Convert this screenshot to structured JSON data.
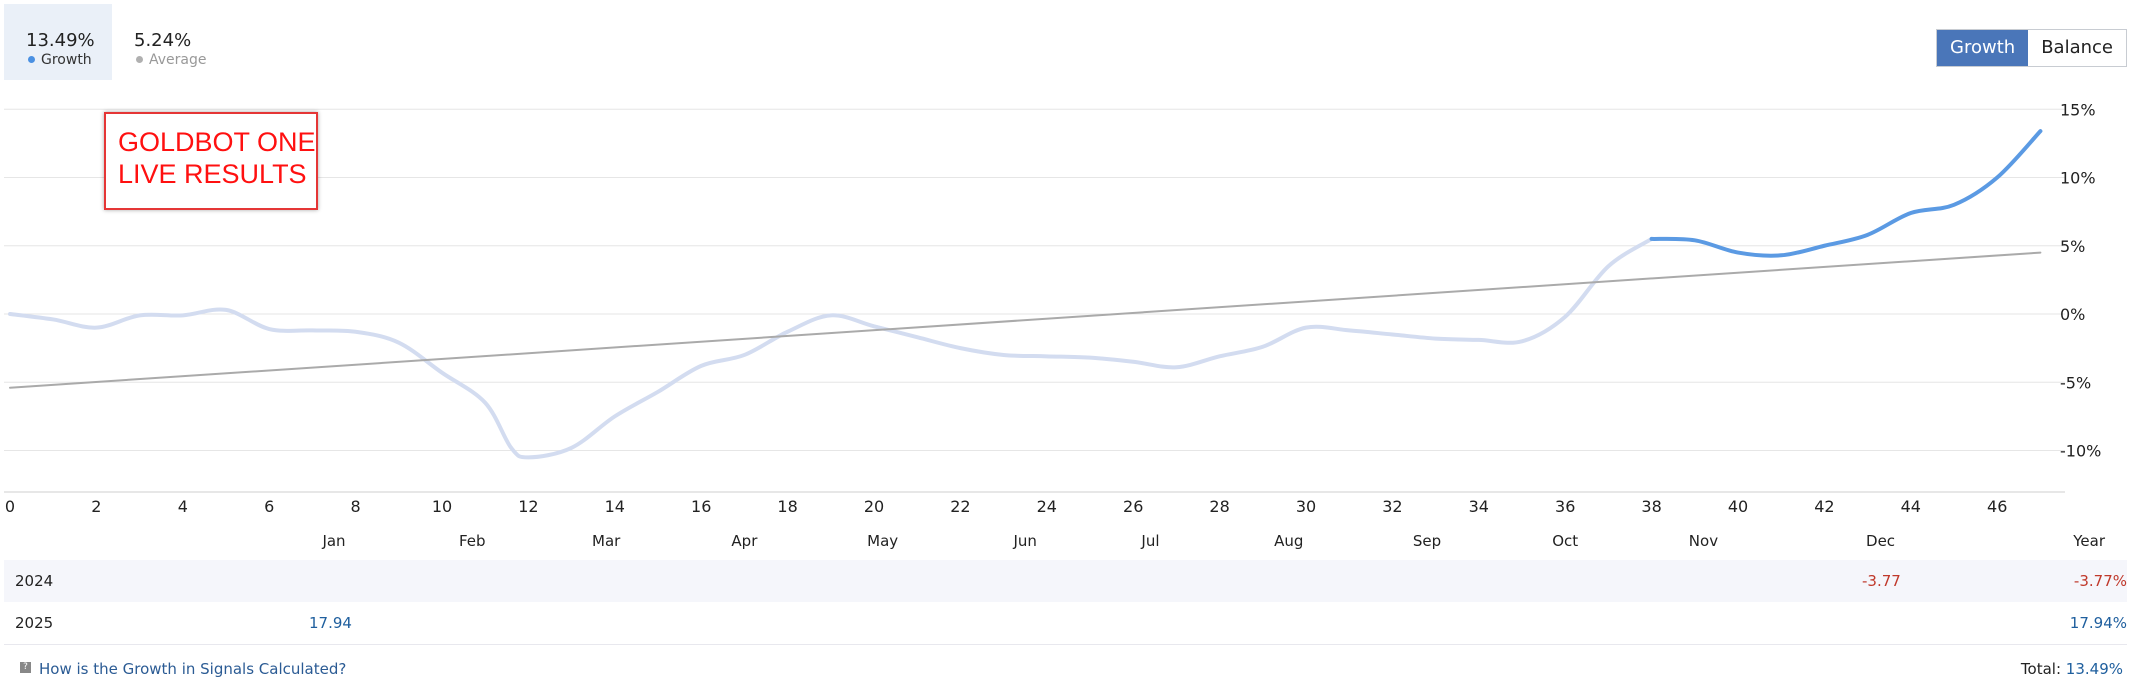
{
  "stats": {
    "growth": {
      "value": "13.49%",
      "label": "Growth",
      "dot_color": "#4a90e2"
    },
    "average": {
      "value": "5.24%",
      "label": "Average",
      "dot_color": "#b0b0b0"
    }
  },
  "toggle": {
    "growth_label": "Growth",
    "balance_label": "Balance",
    "active": "Growth"
  },
  "overlay": {
    "line1": "GOLDBOT ONE",
    "line2": "LIVE RESULTS"
  },
  "chart_data": {
    "type": "line",
    "x_ticks": [
      0,
      2,
      4,
      6,
      8,
      10,
      12,
      14,
      16,
      18,
      20,
      22,
      24,
      26,
      28,
      30,
      32,
      34,
      36,
      38,
      40,
      42,
      44,
      46
    ],
    "y_ticks": [
      15,
      10,
      5,
      0,
      -5,
      -10
    ],
    "y_tick_labels": [
      "15%",
      "10%",
      "5%",
      "0%",
      "-5%",
      "-10%"
    ],
    "ylim": [
      -12.8,
      15
    ],
    "xlim": [
      0,
      47.6
    ],
    "month_labels": [
      {
        "label": "Jan",
        "x": 7.5
      },
      {
        "label": "Feb",
        "x": 10.7
      },
      {
        "label": "Mar",
        "x": 13.8
      },
      {
        "label": "Apr",
        "x": 17.0
      },
      {
        "label": "May",
        "x": 20.2
      },
      {
        "label": "Jun",
        "x": 23.5
      },
      {
        "label": "Jul",
        "x": 26.4
      },
      {
        "label": "Aug",
        "x": 29.6
      },
      {
        "label": "Sep",
        "x": 32.8
      },
      {
        "label": "Oct",
        "x": 36.0
      },
      {
        "label": "Nov",
        "x": 39.2
      },
      {
        "label": "Dec",
        "x": 43.3
      }
    ],
    "year_label": "Year",
    "grid": true,
    "colors": {
      "past_growth": "#d3dcf0",
      "growth": "#5b9ae3",
      "average": "#aaaaaa",
      "grid": "#e6e6e6"
    },
    "series": [
      {
        "name": "Growth",
        "color": "#d3dcf0",
        "points": [
          [
            0,
            0
          ],
          [
            1,
            -0.4
          ],
          [
            2,
            -1
          ],
          [
            3,
            -0.1
          ],
          [
            4,
            -0.1
          ],
          [
            5,
            0.3
          ],
          [
            6,
            -1.1
          ],
          [
            7,
            -1.2
          ],
          [
            8,
            -1.3
          ],
          [
            9,
            -2.1
          ],
          [
            10,
            -4.3
          ],
          [
            11,
            -6.5
          ],
          [
            11.6,
            -9.8
          ],
          [
            12,
            -10.5
          ],
          [
            13,
            -9.8
          ],
          [
            14,
            -7.5
          ],
          [
            15,
            -5.7
          ],
          [
            16,
            -3.8
          ],
          [
            17,
            -3
          ],
          [
            18,
            -1.3
          ],
          [
            19,
            -0.1
          ],
          [
            20,
            -0.9
          ],
          [
            21,
            -1.7
          ],
          [
            22,
            -2.5
          ],
          [
            23,
            -3.0
          ],
          [
            24,
            -3.1
          ],
          [
            25,
            -3.2
          ],
          [
            26,
            -3.5
          ],
          [
            27,
            -3.9
          ],
          [
            28,
            -3.1
          ],
          [
            29,
            -2.4
          ],
          [
            30,
            -1
          ],
          [
            31,
            -1.2
          ],
          [
            32,
            -1.5
          ],
          [
            33,
            -1.8
          ],
          [
            34,
            -1.9
          ],
          [
            35,
            -2
          ],
          [
            36,
            -0.2
          ],
          [
            37,
            3.5
          ],
          [
            38,
            5.5
          ]
        ]
      },
      {
        "name": "Growth",
        "color": "#5b9ae3",
        "points": [
          [
            38,
            5.5
          ],
          [
            39,
            5.4
          ],
          [
            40,
            4.5
          ],
          [
            41,
            4.3
          ],
          [
            42,
            5.0
          ],
          [
            43,
            5.8
          ],
          [
            44,
            7.4
          ],
          [
            45,
            8
          ],
          [
            46,
            10
          ],
          [
            47,
            13.4
          ]
        ]
      },
      {
        "name": "Average",
        "color": "#aaaaaa",
        "points": [
          [
            0,
            -5.4
          ],
          [
            47,
            4.5
          ]
        ]
      }
    ]
  },
  "table": {
    "rows": [
      {
        "year": "2024",
        "jan": "",
        "dec": "-3.77",
        "total": "-3.77%"
      },
      {
        "year": "2025",
        "jan": "17.94",
        "dec": "",
        "total": "17.94%"
      }
    ]
  },
  "footer": {
    "help_text": "How is the Growth in Signals Calculated?",
    "total_label": "Total:",
    "total_value": "13.49%"
  }
}
